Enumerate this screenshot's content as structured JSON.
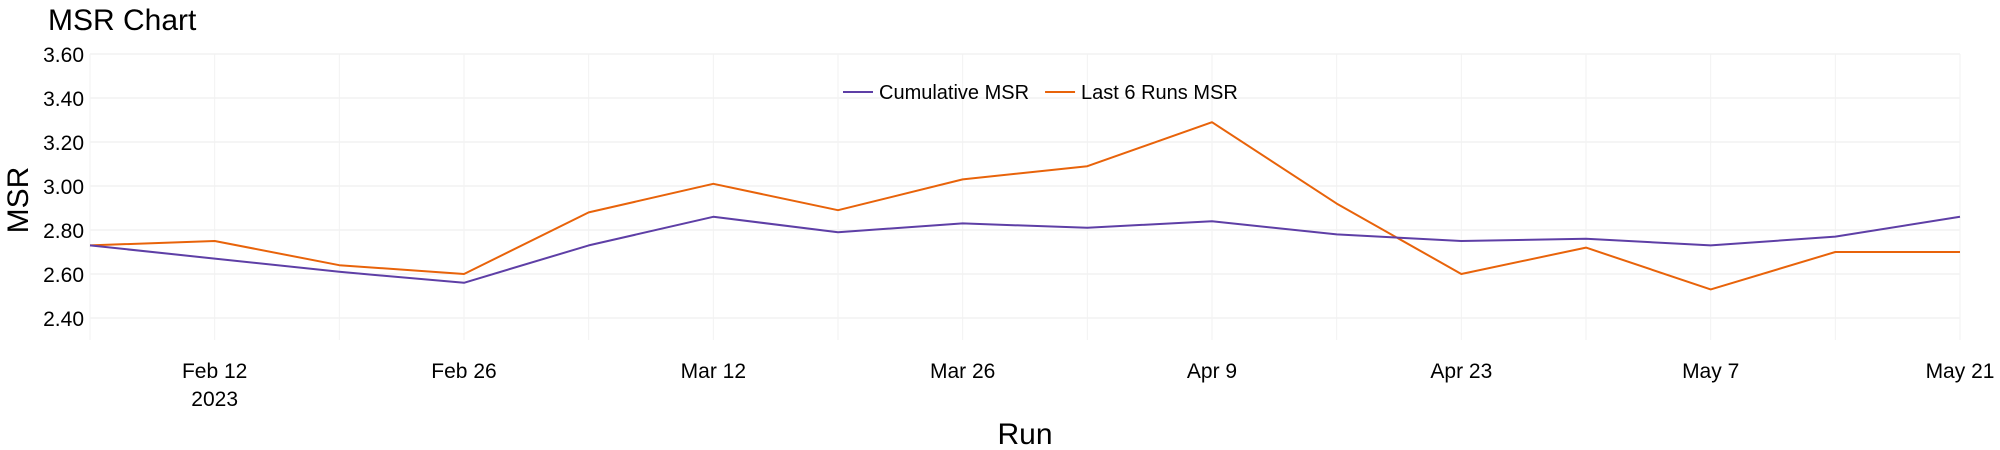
{
  "chart_data": {
    "type": "line",
    "title": "MSR Chart",
    "xlabel": "Run",
    "ylabel": "MSR",
    "x": [
      "2023-02-05",
      "2023-02-12",
      "2023-02-19",
      "2023-02-26",
      "2023-03-05",
      "2023-03-12",
      "2023-03-19",
      "2023-03-26",
      "2023-04-02",
      "2023-04-09",
      "2023-04-16",
      "2023-04-23",
      "2023-04-30",
      "2023-05-07",
      "2023-05-14",
      "2023-05-21"
    ],
    "x_tick_labels": [
      "Feb 12",
      "Feb 26",
      "Mar 12",
      "Mar 26",
      "Apr 9",
      "Apr 23",
      "May 7",
      "May 21"
    ],
    "x_tick_dates": [
      "2023-02-12",
      "2023-02-26",
      "2023-03-12",
      "2023-03-26",
      "2023-04-09",
      "2023-04-23",
      "2023-05-07",
      "2023-05-21"
    ],
    "x_year_label": "2023",
    "xlim": [
      "2023-02-05",
      "2023-05-21"
    ],
    "ylim": [
      2.3,
      3.6
    ],
    "y_ticks": [
      2.4,
      2.6,
      2.8,
      3.0,
      3.2,
      3.4,
      3.6
    ],
    "y_tick_labels": [
      "2.40",
      "2.60",
      "2.80",
      "3.00",
      "3.20",
      "3.40",
      "3.60"
    ],
    "grid": true,
    "legend_position": "top-center",
    "series": [
      {
        "name": "Cumulative MSR",
        "color": "#5e3fa6",
        "values": [
          2.73,
          2.67,
          2.61,
          2.56,
          2.73,
          2.86,
          2.79,
          2.83,
          2.81,
          2.84,
          2.78,
          2.75,
          2.76,
          2.73,
          2.77,
          2.86
        ]
      },
      {
        "name": "Last 6 Runs MSR",
        "color": "#e8630a",
        "values": [
          2.73,
          2.75,
          2.64,
          2.6,
          2.88,
          3.01,
          2.89,
          3.03,
          3.09,
          3.29,
          2.92,
          2.6,
          2.72,
          2.53,
          2.7,
          2.7
        ]
      }
    ]
  }
}
